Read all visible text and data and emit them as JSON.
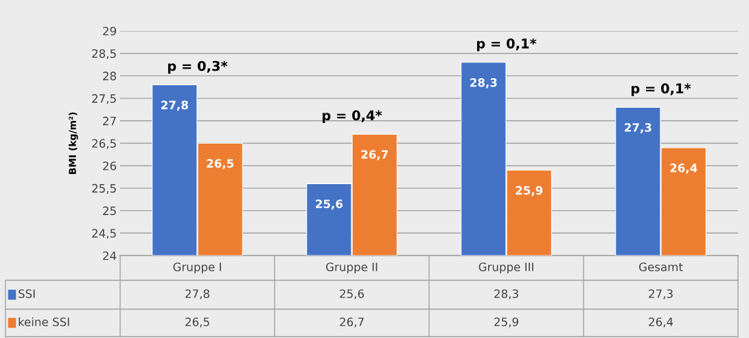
{
  "chart_data": {
    "type": "bar",
    "ylabel": "BMI (kg/m²)",
    "categories": [
      "Gruppe I",
      "Gruppe II",
      "Gruppe III",
      "Gesamt"
    ],
    "series": [
      {
        "name": "SSI",
        "color": "#4472c4",
        "values": [
          27.8,
          25.6,
          28.3,
          27.3
        ],
        "value_labels": [
          "27,8",
          "25,6",
          "28,3",
          "27,3"
        ]
      },
      {
        "name": "keine SSI",
        "color": "#ed7d31",
        "values": [
          26.5,
          26.7,
          25.9,
          26.4
        ],
        "value_labels": [
          "26,5",
          "26,7",
          "25,9",
          "26,4"
        ]
      }
    ],
    "ylim": [
      24,
      29
    ],
    "yticks": [
      24,
      {
        "value": 24.5,
        "label": "24,5"
      },
      25,
      {
        "value": 25.5,
        "label": "25,5"
      },
      26,
      {
        "value": 26.5,
        "label": "26,5"
      },
      27,
      {
        "value": 27.5,
        "label": "27,5"
      },
      28,
      {
        "value": 28.5,
        "label": "28,5"
      },
      29
    ],
    "grid": "y",
    "legend": "bottom",
    "annotations": [
      "p = 0,3*",
      "p = 0,4*",
      "p = 0,1*",
      "p = 0,1*"
    ]
  }
}
